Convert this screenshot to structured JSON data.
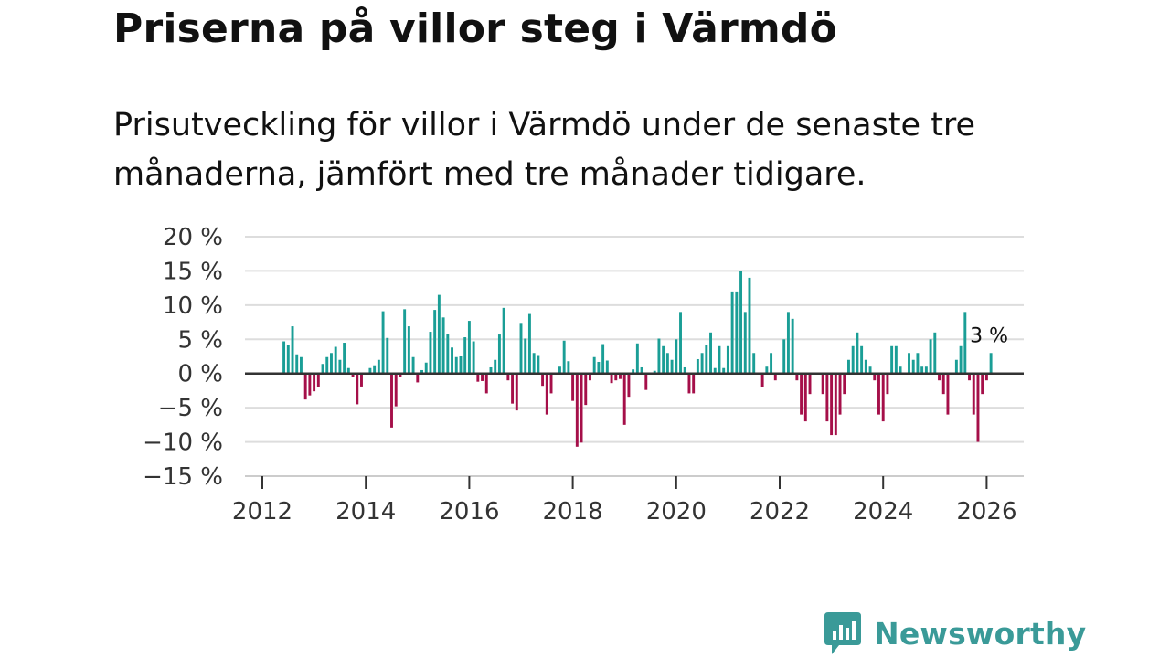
{
  "header": {
    "title": "Priserna på villor steg i Värmdö",
    "subtitle": "Prisutveckling för villor i Värmdö under de senaste tre månaderna, jämfört med tre månader tidigare."
  },
  "brand": {
    "name": "Newsworthy",
    "logo_icon": "bar-chart-speech-bubble-icon",
    "color": "#3a9a98"
  },
  "colors": {
    "positive": "#1a9e96",
    "negative": "#a50f49",
    "zero_line": "#333333",
    "grid": "#dddddd"
  },
  "chart_data": {
    "type": "bar",
    "title": "Priserna på villor steg i Värmdö",
    "xlabel": "",
    "ylabel": "",
    "ylim": [
      -15,
      20
    ],
    "xlim": [
      2012,
      2026.7
    ],
    "grid": true,
    "y_ticks": [
      20,
      15,
      10,
      5,
      0,
      -5,
      -10,
      -15
    ],
    "y_tick_labels": [
      "20 %",
      "15 %",
      "10 %",
      "5 %",
      "0 %",
      "−5 %",
      "−10 %",
      "−15 %"
    ],
    "x_ticks": [
      2012,
      2014,
      2016,
      2018,
      2020,
      2022,
      2024,
      2026
    ],
    "x_tick_labels": [
      "2012",
      "2014",
      "2016",
      "2018",
      "2020",
      "2022",
      "2024",
      "2026"
    ],
    "start_year": 2012.4167,
    "step_months": 1,
    "end_label": "3 %",
    "values": [
      4.7,
      4.2,
      6.9,
      2.8,
      2.4,
      -3.8,
      -3.2,
      -2.6,
      -2.0,
      1.4,
      2.4,
      3.0,
      3.9,
      2.0,
      4.5,
      0.8,
      -0.5,
      -4.5,
      -1.9,
      0,
      0.8,
      1.2,
      2.0,
      9.1,
      5.2,
      -7.9,
      -4.8,
      -0.5,
      9.4,
      6.9,
      2.4,
      -1.3,
      0.5,
      1.6,
      6.1,
      9.3,
      11.5,
      8.2,
      5.8,
      3.8,
      2.4,
      2.5,
      5.3,
      7.7,
      4.7,
      -1.2,
      -1.1,
      -2.9,
      0.9,
      2.0,
      5.7,
      9.6,
      -1.0,
      -4.4,
      -5.4,
      7.4,
      5.1,
      8.7,
      3.0,
      2.7,
      -1.8,
      -6.0,
      -2.9,
      0,
      1.0,
      4.8,
      1.8,
      -4.0,
      -10.7,
      -10.1,
      -4.6,
      -1.0,
      2.4,
      1.7,
      4.3,
      1.9,
      -1.4,
      -1.0,
      -0.8,
      -7.5,
      -3.4,
      0.6,
      4.4,
      0.9,
      -2.4,
      0,
      0.4,
      5.1,
      4.0,
      3.0,
      2.0,
      5.0,
      9.0,
      0.9,
      -2.9,
      -2.9,
      2.1,
      3.0,
      4.2,
      6.0,
      0.8,
      4.0,
      0.8,
      4.0,
      12.0,
      12.0,
      15.0,
      9.0,
      14.0,
      3.0,
      0,
      -2.0,
      1.0,
      3.0,
      -1.0,
      0,
      5.0,
      9.0,
      8.0,
      -1.0,
      -6.0,
      -7.0,
      -3.0,
      0,
      0,
      -3.0,
      -7.0,
      -9.0,
      -9.0,
      -6.0,
      -3.0,
      2.0,
      4.0,
      6.0,
      4.0,
      2.0,
      1.0,
      -1.0,
      -6.0,
      -7.0,
      -3.0,
      4.0,
      4.0,
      1.0,
      0,
      3.0,
      2.0,
      3.0,
      1.0,
      1.0,
      5.0,
      6.0,
      -1.0,
      -3.0,
      -6.0,
      0,
      2.0,
      4.0,
      9.0,
      -1.0,
      -6.0,
      -10.0,
      -3.0,
      -1.0,
      3.0
    ]
  }
}
